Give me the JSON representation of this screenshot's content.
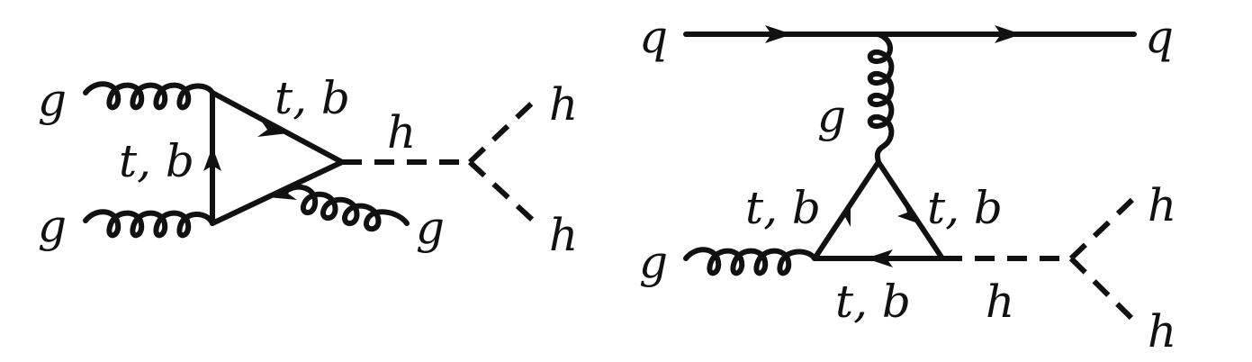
{
  "diagram_1": {
    "gluon_in_top": "g",
    "gluon_in_bottom": "g",
    "loop_left": "t, b",
    "loop_top": "t, b",
    "higgs_internal": "h",
    "higgs_out_top": "h",
    "higgs_out_bottom": "h",
    "gluon_out": "g"
  },
  "diagram_2": {
    "quark_in": "q",
    "quark_out": "q",
    "gluon_exchange": "g",
    "gluon_in": "g",
    "loop_left": "t, b",
    "loop_right": "t, b",
    "loop_bottom": "t, b",
    "higgs_internal": "h",
    "higgs_out_top": "h",
    "higgs_out_bottom": "h"
  },
  "colors": {
    "ink": "#111111",
    "background": "#ffffff"
  }
}
